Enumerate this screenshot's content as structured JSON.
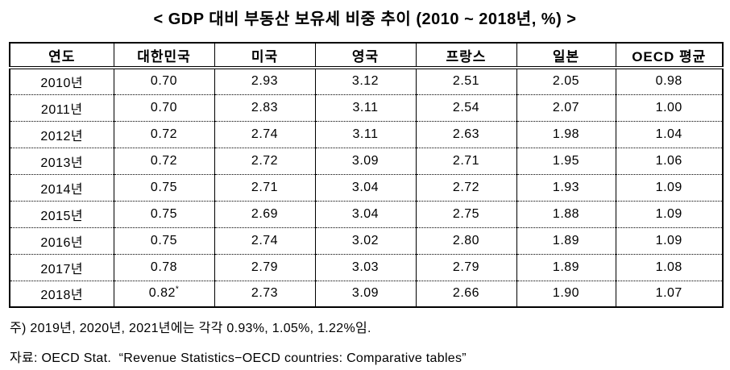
{
  "title": "< GDP 대비 부동산 보유세 비중 추이 (2010 ~ 2018년, %) >",
  "table": {
    "columns": [
      "연도",
      "대한민국",
      "미국",
      "영국",
      "프랑스",
      "일본",
      "OECD 평균"
    ],
    "rows": [
      {
        "cells": [
          "2010년",
          "0.70",
          "2.93",
          "3.12",
          "2.51",
          "2.05",
          "0.98"
        ]
      },
      {
        "cells": [
          "2011년",
          "0.70",
          "2.83",
          "3.11",
          "2.54",
          "2.07",
          "1.00"
        ]
      },
      {
        "cells": [
          "2012년",
          "0.72",
          "2.74",
          "3.11",
          "2.63",
          "1.98",
          "1.04"
        ]
      },
      {
        "cells": [
          "2013년",
          "0.72",
          "2.72",
          "3.09",
          "2.71",
          "1.95",
          "1.06"
        ]
      },
      {
        "cells": [
          "2014년",
          "0.75",
          "2.71",
          "3.04",
          "2.72",
          "1.93",
          "1.09"
        ]
      },
      {
        "cells": [
          "2015년",
          "0.75",
          "2.69",
          "3.04",
          "2.75",
          "1.88",
          "1.09"
        ]
      },
      {
        "cells": [
          "2016년",
          "0.75",
          "2.74",
          "3.02",
          "2.80",
          "1.89",
          "1.09"
        ]
      },
      {
        "cells": [
          "2017년",
          "0.78",
          "2.79",
          "3.03",
          "2.79",
          "1.89",
          "1.08"
        ]
      },
      {
        "cells": [
          "2018년",
          {
            "v": "0.82",
            "sup": "*"
          },
          "2.73",
          "3.09",
          "2.66",
          "1.90",
          "1.07"
        ]
      }
    ]
  },
  "notes": {
    "footnote": "주) 2019년, 2020년, 2021년에는 각각 0.93%, 1.05%, 1.22%임.",
    "source": "자료: OECD Stat.  “Revenue Statistics−OECD countries: Comparative tables”"
  },
  "colors": {
    "text": "#000000",
    "background": "#ffffff",
    "border": "#000000"
  }
}
